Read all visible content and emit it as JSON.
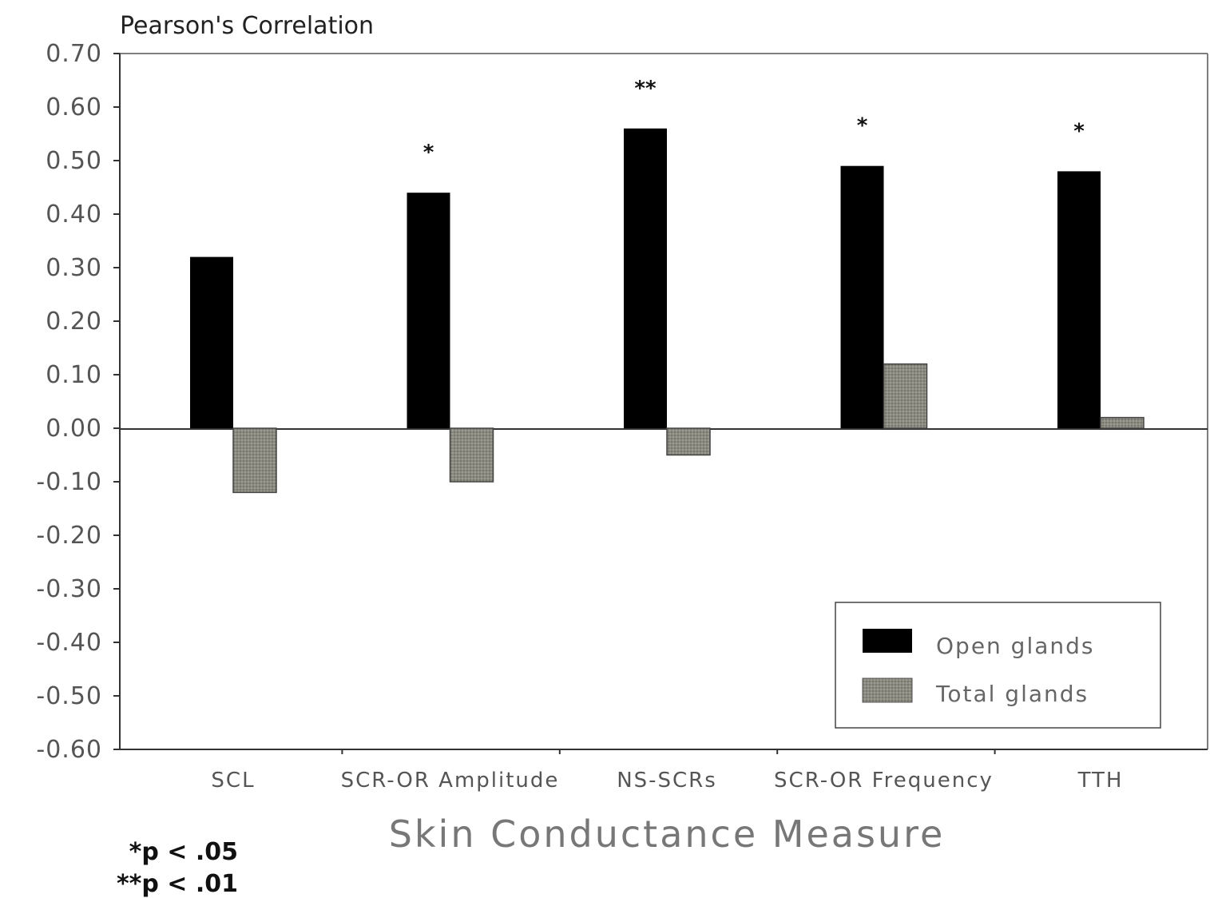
{
  "chart_data": {
    "type": "bar",
    "title": "",
    "ylabel": "Pearson's Correlation",
    "xlabel": "Skin Conductance Measure",
    "ylim": [
      -0.6,
      0.7
    ],
    "yticks": [
      "0.70",
      "0.60",
      "0.50",
      "0.40",
      "0.30",
      "0.20",
      "0.10",
      "0.00",
      "-0.10",
      "-0.20",
      "-0.30",
      "-0.40",
      "-0.50",
      "-0.60"
    ],
    "categories": [
      "SCL",
      "SCR-OR Amplitude",
      "NS-SCRs",
      "SCR-OR Frequency",
      "TTH"
    ],
    "series": [
      {
        "name": "Open glands",
        "color": "#000000",
        "values": [
          0.32,
          0.44,
          0.56,
          0.49,
          0.48
        ]
      },
      {
        "name": "Total glands",
        "color": "#8a8a80",
        "values": [
          -0.12,
          -0.1,
          -0.05,
          0.12,
          0.02
        ]
      }
    ],
    "significance": [
      "",
      "*",
      "**",
      "*",
      "*"
    ],
    "legend": {
      "position": "bottom-right"
    },
    "grid": false,
    "footnotes": [
      "*p < .05",
      "**p < .01"
    ]
  }
}
